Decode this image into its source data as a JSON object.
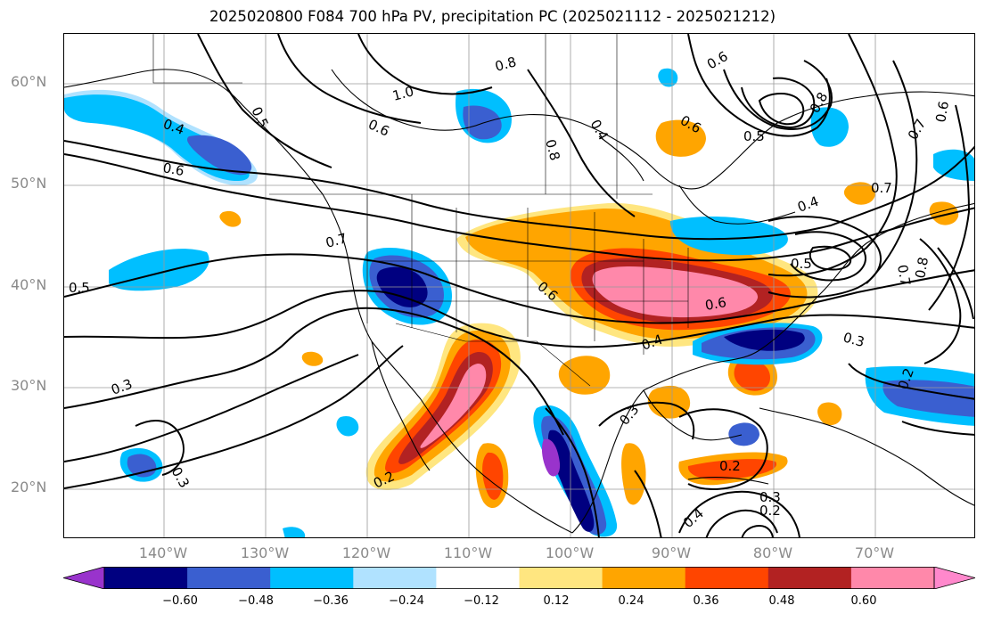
{
  "title": "2025020800 F084 700 hPa PV, precipitation PC (2025021112 - 2025021212)",
  "map": {
    "lat_ticks": [
      "60°N",
      "50°N",
      "40°N",
      "30°N",
      "20°N"
    ],
    "lon_ticks": [
      "140°W",
      "130°W",
      "120°W",
      "110°W",
      "100°W",
      "90°W",
      "80°W",
      "70°W"
    ],
    "pv_contour_labels": [
      "0.8",
      "0.6",
      "1.0",
      "0.5",
      "0.4",
      "0.6",
      "0.6",
      "0.7",
      "0.5",
      "0.6",
      "0.6",
      "0.4",
      "0.3",
      "0.3",
      "0.3",
      "0.2",
      "0.2",
      "0.3",
      "0.2",
      "0.4",
      "0.5",
      "0.7",
      "0.4",
      "0.8",
      "0.7",
      "0.3",
      "0.2",
      "0.8",
      "0.5",
      "0.6",
      "0.7",
      "0.8",
      "0.4",
      "0.6"
    ]
  },
  "colorbar": {
    "ticks": [
      "−0.60",
      "−0.48",
      "−0.36",
      "−0.24",
      "−0.12",
      "0.12",
      "0.24",
      "0.36",
      "0.48",
      "0.60"
    ],
    "colors": [
      "#9933cc",
      "#000080",
      "#3a5fd0",
      "#00bfff",
      "#b0e2ff",
      "#ffffff",
      "#ffe680",
      "#ffa500",
      "#ff4500",
      "#b22222",
      "#ff88aa",
      "#ff88cc"
    ]
  }
}
